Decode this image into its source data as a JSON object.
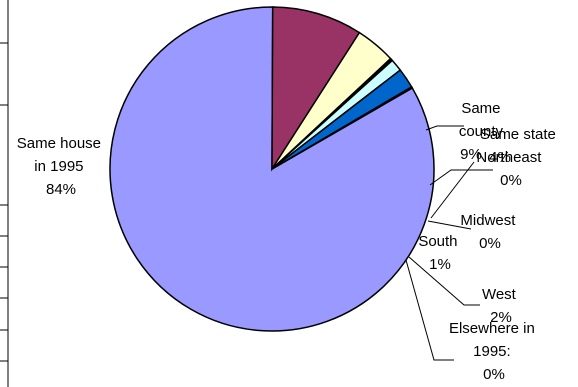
{
  "chart_data": {
    "type": "pie",
    "title": "",
    "slices": [
      {
        "label": "Same house in 1995",
        "value": 84,
        "percent_text": "84%",
        "color": "#9999FF"
      },
      {
        "label": "Same county",
        "value": 9,
        "percent_text": "9%",
        "color": "#993366"
      },
      {
        "label": "Same state",
        "value": 4,
        "percent_text": "4%",
        "color": "#FFFFCC"
      },
      {
        "label": "Northeast",
        "value": 0,
        "percent_text": "0%",
        "color": "#FF8080"
      },
      {
        "label": "Midwest",
        "value": 0,
        "percent_text": "0%",
        "color": "#CCCCFF"
      },
      {
        "label": "South",
        "value": 1,
        "percent_text": "1%",
        "color": "#CCFFFF"
      },
      {
        "label": "West",
        "value": 2,
        "percent_text": "2%",
        "color": "#0066CC"
      },
      {
        "label": "Elsewhere in 1995:",
        "value": 0,
        "percent_text": "0%",
        "color": "#000080"
      }
    ],
    "labels": {
      "same_house": [
        "Same house",
        "in 1995",
        "84%"
      ],
      "same_county": [
        "Same",
        "county",
        "9%"
      ],
      "same_state": [
        "Same state",
        "4%"
      ],
      "northeast": [
        "Northeast",
        "0%"
      ],
      "midwest": [
        "Midwest",
        "0%"
      ],
      "south": [
        "South",
        "1%"
      ],
      "west": [
        "West",
        "2%"
      ],
      "elsewhere": [
        "Elsewhere in",
        "1995:",
        "0%"
      ]
    }
  }
}
